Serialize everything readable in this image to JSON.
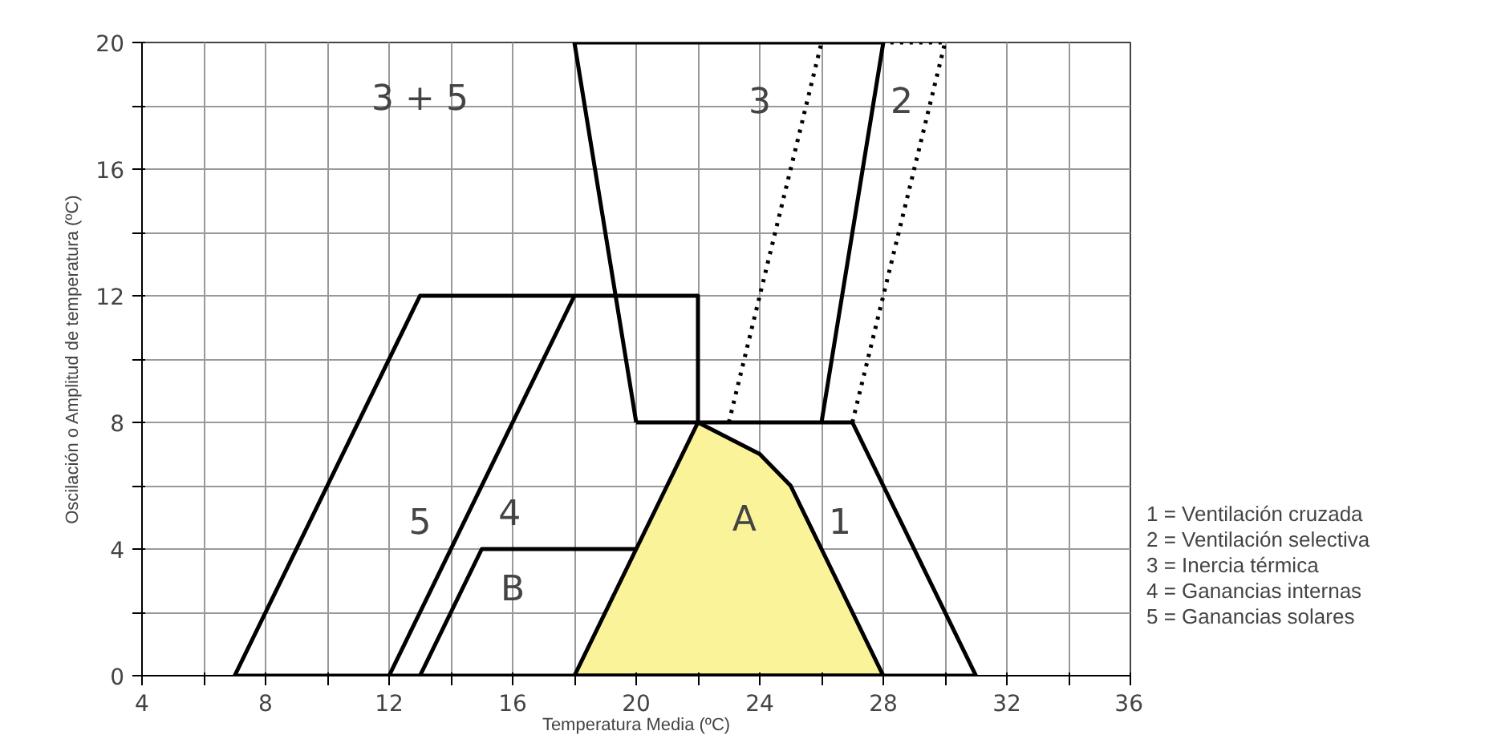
{
  "chart_data": {
    "type": "line",
    "xlabel": "Temperatura Media (ºC)",
    "ylabel": "Oscilación o Amplitud de temperatura (ºC)",
    "xlim": [
      4,
      36
    ],
    "ylim": [
      0,
      20
    ],
    "xticks": [
      4,
      {
        "value": 6,
        "label": null
      },
      8,
      {
        "value": 10,
        "label": null
      },
      12,
      {
        "value": 14,
        "label": null
      },
      16,
      {
        "value": 18,
        "label": null
      },
      20,
      {
        "value": 22,
        "label": null
      },
      24,
      {
        "value": 26,
        "label": null
      },
      28,
      {
        "value": 30,
        "label": null
      },
      32,
      {
        "value": 34,
        "label": null
      },
      36
    ],
    "yticks": [
      0,
      {
        "value": 2,
        "label": null
      },
      4,
      {
        "value": 6,
        "label": null
      },
      8,
      {
        "value": 10,
        "label": null
      },
      12,
      {
        "value": 14,
        "label": null
      },
      16,
      {
        "value": 18,
        "label": null
      },
      20
    ],
    "grid": true,
    "series": [
      {
        "type": "area",
        "color": "#faf39a",
        "x": [
          18,
          22,
          24,
          25,
          28
        ],
        "values": [
          0,
          8,
          7,
          6,
          0
        ]
      },
      {
        "color": "#000000",
        "x": [
          7,
          31
        ],
        "values": [
          0,
          0
        ]
      },
      {
        "color": "#000000",
        "x": [
          7,
          13,
          22,
          22
        ],
        "values": [
          0,
          12,
          12,
          8
        ]
      },
      {
        "color": "#000000",
        "x": [
          12,
          18
        ],
        "values": [
          0,
          12
        ]
      },
      {
        "color": "#000000",
        "x": [
          13,
          15,
          20
        ],
        "values": [
          0,
          4,
          4
        ]
      },
      {
        "color": "#000000",
        "x": [
          26,
          28,
          18,
          20
        ],
        "values": [
          8,
          20,
          20,
          8
        ]
      },
      {
        "color": "#000000",
        "x": [
          20,
          27,
          31
        ],
        "values": [
          8,
          8,
          0
        ]
      },
      {
        "color": "#000000",
        "line_style": "dotted",
        "x": [
          23,
          26
        ],
        "values": [
          8,
          20
        ]
      },
      {
        "color": "#000000",
        "line_style": "dotted",
        "x": [
          27,
          30,
          28
        ],
        "values": [
          8,
          20,
          20
        ]
      }
    ],
    "annotations": [
      "3 + 5",
      "3",
      "2",
      "5",
      "4",
      "B",
      "A",
      "1",
      "1 = Ventilación cruzada",
      "2 = Ventilación selectiva",
      "3 = Inercia térmica",
      "4 = Ganancias internas",
      "5 = Ganancias solares"
    ]
  }
}
